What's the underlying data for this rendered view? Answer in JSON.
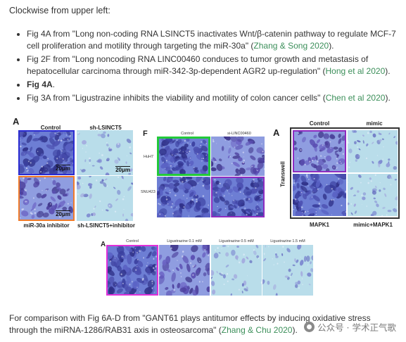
{
  "intro": "Clockwise from upper left:",
  "refs": [
    {
      "pre": "Fig 4A from \"Long non-coding RNA LSINCT5 inactivates Wnt/β-catenin pathway to regulate MCF-7 cell proliferation and motility through targeting the miR-30a\" (",
      "link": "Zhang & Song 2020",
      "post": ")."
    },
    {
      "pre": "Fig 2F from \"Long noncoding RNA LINC00460 conduces to tumor growth and metastasis of hepatocellular carcinoma through miR-342-3p-dependent AGR2 up-regulation\" (",
      "link": "Hong et al 2020",
      "post": ")."
    },
    {
      "bold": "Fig 4A",
      "post": "."
    },
    {
      "pre": "Fig 3A from \"Ligustrazine inhibits the viability and motility of colon cancer cells\" (",
      "link": "Chen et al 2020",
      "post": ")."
    }
  ],
  "fig1": {
    "letter": "A",
    "labels": {
      "control": "Control",
      "sh": "sh-LSINCT5",
      "inhibitor": "miR-30a inhibitor",
      "combo": "sh-LSINCT5+inhibitor"
    },
    "scale": "20μm"
  },
  "fig2": {
    "letter": "F",
    "labels": {
      "control": "Control",
      "si": "si-LINC00460",
      "huh7": "HuH7",
      "snu": "SNU423"
    }
  },
  "fig3": {
    "letter": "A",
    "labels": {
      "control": "Control",
      "mimic": "mimic",
      "side": "Transwell",
      "mapk": "MAPK1",
      "combo": "mimic+MAPK1"
    }
  },
  "fig4": {
    "letter": "A",
    "labels": {
      "control": "Control",
      "l1": "Ligustrazine 0.1 mM",
      "l2": "Ligustrazine 0.5 mM",
      "l3": "Ligustrazine 1.5 mM"
    }
  },
  "bottom": {
    "pre": "For comparison with Fig 6A-D from \"GANT61 plays antitumor effects by inducing oxidative stress through the miRNA‐1286/RAB31 axis in osteosarcoma\" (",
    "link": "Zhang & Chu 2020",
    "post": ")."
  },
  "watermark": "公众号 · 学术正气歌",
  "colors": {
    "link": "#3c8f5a",
    "blue_border": "#2b2bd1",
    "orange_border": "#f07b2a",
    "green_border": "#22c93a",
    "purple_border": "#8e2cc0",
    "magenta_border": "#e030d8"
  }
}
